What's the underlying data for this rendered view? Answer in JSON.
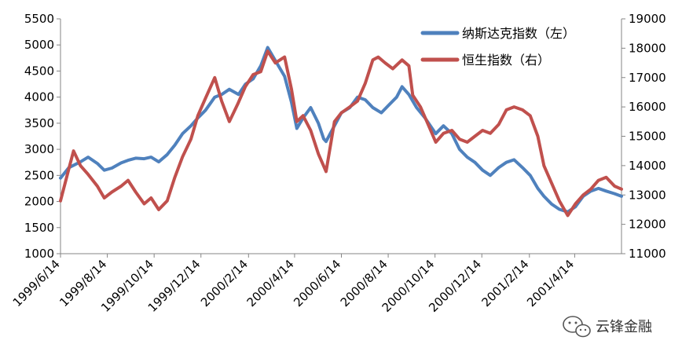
{
  "chart_data": {
    "type": "line",
    "x_tick_labels": [
      "1999/6/14",
      "1999/8/14",
      "1999/10/14",
      "1999/12/14",
      "2000/2/14",
      "2000/4/14",
      "2000/6/14",
      "2000/8/14",
      "2000/10/14",
      "2000/12/14",
      "2001/2/14",
      "2001/4/14"
    ],
    "y_left_ticks": [
      "1000",
      "1500",
      "2000",
      "2500",
      "3000",
      "3500",
      "4000",
      "4500",
      "5000",
      "5500"
    ],
    "y_right_ticks": [
      "11000",
      "12000",
      "13000",
      "14000",
      "15000",
      "16000",
      "17000",
      "18000",
      "19000"
    ],
    "ylim_left": [
      1000,
      5500
    ],
    "ylim_right": [
      11000,
      19000
    ],
    "x_range": [
      "1999-06-14",
      "2001-06-14"
    ],
    "grid": false,
    "legend_position": "top-right",
    "series": [
      {
        "name": "纳斯达克指数（左）",
        "axis": "left",
        "color": "#4f81bd",
        "points": [
          [
            "1999-06-14",
            2450
          ],
          [
            "1999-06-25",
            2650
          ],
          [
            "1999-07-10",
            2760
          ],
          [
            "1999-07-20",
            2850
          ],
          [
            "1999-08-01",
            2730
          ],
          [
            "1999-08-10",
            2600
          ],
          [
            "1999-08-20",
            2640
          ],
          [
            "1999-09-01",
            2740
          ],
          [
            "1999-09-10",
            2790
          ],
          [
            "1999-09-20",
            2830
          ],
          [
            "1999-10-01",
            2820
          ],
          [
            "1999-10-10",
            2850
          ],
          [
            "1999-10-20",
            2760
          ],
          [
            "1999-10-31",
            2900
          ],
          [
            "1999-11-10",
            3080
          ],
          [
            "1999-11-20",
            3300
          ],
          [
            "1999-12-01",
            3450
          ],
          [
            "1999-12-10",
            3600
          ],
          [
            "1999-12-20",
            3750
          ],
          [
            "2000-01-01",
            4000
          ],
          [
            "2000-01-10",
            4050
          ],
          [
            "2000-01-20",
            4150
          ],
          [
            "2000-02-01",
            4050
          ],
          [
            "2000-02-10",
            4250
          ],
          [
            "2000-02-20",
            4350
          ],
          [
            "2000-03-01",
            4600
          ],
          [
            "2000-03-10",
            4950
          ],
          [
            "2000-03-20",
            4700
          ],
          [
            "2000-04-01",
            4400
          ],
          [
            "2000-04-10",
            3900
          ],
          [
            "2000-04-17",
            3400
          ],
          [
            "2000-04-25",
            3600
          ],
          [
            "2000-05-05",
            3800
          ],
          [
            "2000-05-15",
            3500
          ],
          [
            "2000-05-22",
            3200
          ],
          [
            "2000-05-25",
            3150
          ],
          [
            "2000-06-14",
            3700
          ],
          [
            "2000-06-25",
            3800
          ],
          [
            "2000-07-05",
            4000
          ],
          [
            "2000-07-15",
            3950
          ],
          [
            "2000-07-25",
            3800
          ],
          [
            "2000-08-05",
            3700
          ],
          [
            "2000-08-15",
            3850
          ],
          [
            "2000-08-25",
            4000
          ],
          [
            "2000-09-01",
            4200
          ],
          [
            "2000-09-10",
            4050
          ],
          [
            "2000-09-20",
            3800
          ],
          [
            "2000-10-01",
            3600
          ],
          [
            "2000-10-15",
            3300
          ],
          [
            "2000-10-25",
            3450
          ],
          [
            "2000-11-05",
            3300
          ],
          [
            "2000-11-15",
            3000
          ],
          [
            "2000-11-25",
            2850
          ],
          [
            "2000-12-05",
            2750
          ],
          [
            "2000-12-15",
            2600
          ],
          [
            "2000-12-25",
            2500
          ],
          [
            "2001-01-05",
            2650
          ],
          [
            "2001-01-15",
            2750
          ],
          [
            "2001-01-25",
            2800
          ],
          [
            "2001-02-05",
            2650
          ],
          [
            "2001-02-15",
            2500
          ],
          [
            "2001-02-25",
            2250
          ],
          [
            "2001-03-05",
            2100
          ],
          [
            "2001-03-15",
            1950
          ],
          [
            "2001-03-25",
            1850
          ],
          [
            "2001-04-05",
            1800
          ],
          [
            "2001-04-15",
            1900
          ],
          [
            "2001-04-25",
            2100
          ],
          [
            "2001-05-05",
            2200
          ],
          [
            "2001-05-15",
            2250
          ],
          [
            "2001-05-25",
            2200
          ],
          [
            "2001-06-05",
            2150
          ],
          [
            "2001-06-14",
            2100
          ]
        ]
      },
      {
        "name": "恒生指数（右）",
        "axis": "right",
        "color": "#c0504d",
        "points": [
          [
            "1999-06-14",
            12800
          ],
          [
            "1999-06-25",
            13900
          ],
          [
            "1999-07-01",
            14500
          ],
          [
            "1999-07-10",
            14000
          ],
          [
            "1999-07-20",
            13700
          ],
          [
            "1999-08-01",
            13300
          ],
          [
            "1999-08-10",
            12900
          ],
          [
            "1999-08-20",
            13100
          ],
          [
            "1999-09-01",
            13300
          ],
          [
            "1999-09-10",
            13500
          ],
          [
            "1999-09-20",
            13100
          ],
          [
            "1999-10-01",
            12700
          ],
          [
            "1999-10-10",
            12900
          ],
          [
            "1999-10-20",
            12500
          ],
          [
            "1999-10-31",
            12800
          ],
          [
            "1999-11-10",
            13600
          ],
          [
            "1999-11-20",
            14300
          ],
          [
            "1999-12-01",
            14900
          ],
          [
            "1999-12-10",
            15700
          ],
          [
            "1999-12-20",
            16300
          ],
          [
            "2000-01-01",
            17000
          ],
          [
            "2000-01-10",
            16200
          ],
          [
            "2000-01-20",
            15500
          ],
          [
            "2000-01-31",
            16100
          ],
          [
            "2000-02-10",
            16700
          ],
          [
            "2000-02-20",
            17100
          ],
          [
            "2000-03-01",
            17200
          ],
          [
            "2000-03-10",
            17900
          ],
          [
            "2000-03-20",
            17500
          ],
          [
            "2000-04-01",
            17700
          ],
          [
            "2000-04-10",
            16600
          ],
          [
            "2000-04-17",
            15500
          ],
          [
            "2000-04-25",
            15700
          ],
          [
            "2000-05-05",
            15200
          ],
          [
            "2000-05-15",
            14400
          ],
          [
            "2000-05-25",
            13800
          ],
          [
            "2000-06-05",
            15500
          ],
          [
            "2000-06-14",
            15800
          ],
          [
            "2000-06-25",
            16000
          ],
          [
            "2000-07-05",
            16200
          ],
          [
            "2000-07-15",
            16800
          ],
          [
            "2000-07-25",
            17600
          ],
          [
            "2000-08-01",
            17700
          ],
          [
            "2000-08-10",
            17500
          ],
          [
            "2000-08-20",
            17300
          ],
          [
            "2000-09-01",
            17600
          ],
          [
            "2000-09-10",
            17400
          ],
          [
            "2000-09-15",
            16400
          ],
          [
            "2000-09-25",
            16000
          ],
          [
            "2000-10-05",
            15400
          ],
          [
            "2000-10-15",
            14800
          ],
          [
            "2000-10-25",
            15100
          ],
          [
            "2000-11-05",
            15200
          ],
          [
            "2000-11-15",
            14900
          ],
          [
            "2000-11-25",
            14800
          ],
          [
            "2000-12-05",
            15000
          ],
          [
            "2000-12-15",
            15200
          ],
          [
            "2000-12-25",
            15100
          ],
          [
            "2001-01-05",
            15400
          ],
          [
            "2001-01-15",
            15900
          ],
          [
            "2001-01-25",
            16000
          ],
          [
            "2001-02-05",
            15900
          ],
          [
            "2001-02-15",
            15700
          ],
          [
            "2001-02-25",
            15000
          ],
          [
            "2001-03-05",
            14000
          ],
          [
            "2001-03-15",
            13400
          ],
          [
            "2001-03-25",
            12800
          ],
          [
            "2001-04-05",
            12300
          ],
          [
            "2001-04-15",
            12700
          ],
          [
            "2001-04-25",
            13000
          ],
          [
            "2001-05-05",
            13200
          ],
          [
            "2001-05-15",
            13500
          ],
          [
            "2001-05-25",
            13600
          ],
          [
            "2001-06-05",
            13300
          ],
          [
            "2001-06-14",
            13200
          ]
        ]
      }
    ]
  },
  "watermark": {
    "text": "云锋金融",
    "icon": "wechat-bubble-icon"
  }
}
